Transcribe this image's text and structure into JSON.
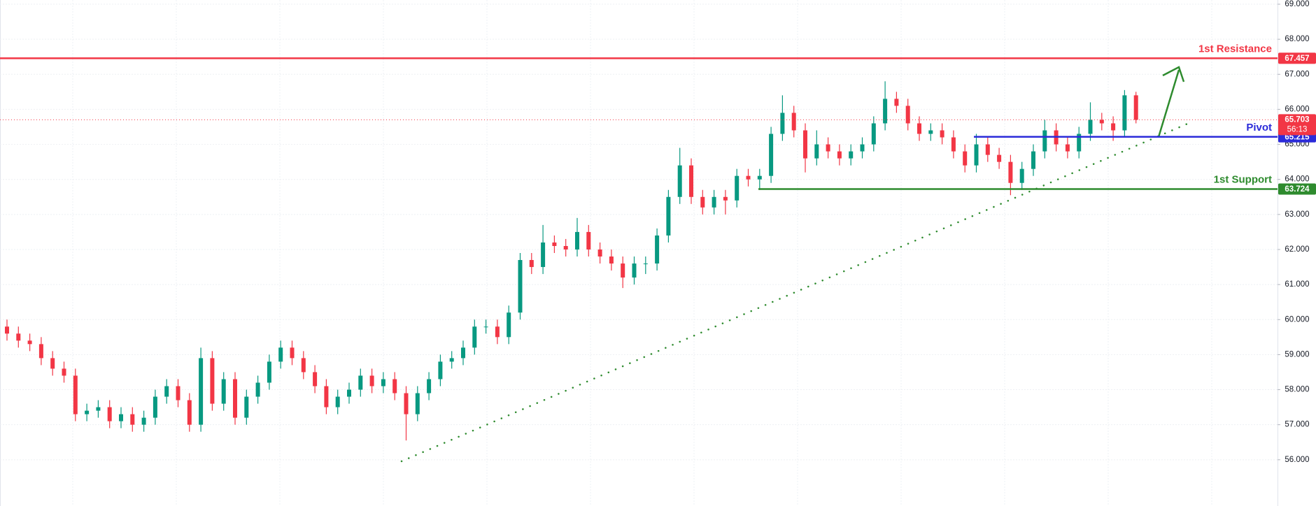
{
  "chart_data": {
    "type": "candlestick",
    "open": [
      59.8,
      59.6,
      59.4,
      59.3,
      58.9,
      58.6,
      58.4,
      57.3,
      57.4,
      57.5,
      57.1,
      57.3,
      57.0,
      57.2,
      57.8,
      58.1,
      57.7,
      57.0,
      58.9,
      57.6,
      58.3,
      57.2,
      57.8,
      58.2,
      58.8,
      59.2,
      58.9,
      58.5,
      58.1,
      57.5,
      57.8,
      58.0,
      58.4,
      58.1,
      58.3,
      57.9,
      57.3,
      57.9,
      58.3,
      58.8,
      58.9,
      59.2,
      59.8,
      59.8,
      59.5,
      60.2,
      61.7,
      61.5,
      62.2,
      62.1,
      62.0,
      62.5,
      62.0,
      61.8,
      61.6,
      61.2,
      61.6,
      61.6,
      62.4,
      63.5,
      64.4,
      63.5,
      63.2,
      63.5,
      63.4,
      64.1,
      64.0,
      64.1,
      65.3,
      65.9,
      65.4,
      64.6,
      65.0,
      64.8,
      64.6,
      64.8,
      65.0,
      65.6,
      66.3,
      66.1,
      65.6,
      65.3,
      65.4,
      65.2,
      64.8,
      64.4,
      65.0,
      64.7,
      64.5,
      63.9,
      64.3,
      64.8,
      65.4,
      65.0,
      64.8,
      65.3,
      65.7,
      65.6,
      65.4,
      66.4
    ],
    "high": [
      60.0,
      59.8,
      59.6,
      59.5,
      59.1,
      58.8,
      58.6,
      57.6,
      57.7,
      57.7,
      57.5,
      57.5,
      57.4,
      58.0,
      58.3,
      58.3,
      57.9,
      59.2,
      59.1,
      58.5,
      58.5,
      58.0,
      58.4,
      59.0,
      59.4,
      59.4,
      59.1,
      58.7,
      58.3,
      58.0,
      58.2,
      58.6,
      58.6,
      58.5,
      58.5,
      58.1,
      58.1,
      58.5,
      59.0,
      59.1,
      59.4,
      60.0,
      60.0,
      60.0,
      60.4,
      61.9,
      61.9,
      62.7,
      62.4,
      62.3,
      62.9,
      62.7,
      62.2,
      62.0,
      61.8,
      61.8,
      61.8,
      62.6,
      63.7,
      64.9,
      64.6,
      63.7,
      63.7,
      63.7,
      64.3,
      64.3,
      64.3,
      65.5,
      66.4,
      66.1,
      65.6,
      65.4,
      65.2,
      65.0,
      65.0,
      65.2,
      65.8,
      66.8,
      66.5,
      66.3,
      65.8,
      65.6,
      65.6,
      65.4,
      65.0,
      65.3,
      65.2,
      64.9,
      64.7,
      64.5,
      65.0,
      65.7,
      65.6,
      65.2,
      65.5,
      66.2,
      65.9,
      65.8,
      66.55,
      66.5
    ],
    "low": [
      59.4,
      59.2,
      59.1,
      58.7,
      58.4,
      58.2,
      57.1,
      57.1,
      57.2,
      56.9,
      56.9,
      56.8,
      56.8,
      57.0,
      57.6,
      57.5,
      56.8,
      56.8,
      57.4,
      57.4,
      57.0,
      57.0,
      57.6,
      58.0,
      58.6,
      58.7,
      58.3,
      57.9,
      57.3,
      57.3,
      57.6,
      57.8,
      57.9,
      57.9,
      57.7,
      56.55,
      57.1,
      57.7,
      58.1,
      58.6,
      58.7,
      59.0,
      59.6,
      59.3,
      59.3,
      60.0,
      61.3,
      61.3,
      61.9,
      61.8,
      61.8,
      61.8,
      61.6,
      61.4,
      60.9,
      61.0,
      61.3,
      61.4,
      62.2,
      63.3,
      63.3,
      63.0,
      63.0,
      63.0,
      63.2,
      63.8,
      63.7,
      63.9,
      65.1,
      65.2,
      64.2,
      64.4,
      64.6,
      64.4,
      64.4,
      64.6,
      64.8,
      65.4,
      65.9,
      65.4,
      65.1,
      65.1,
      65.0,
      64.6,
      64.2,
      64.2,
      64.5,
      64.3,
      63.55,
      63.7,
      64.1,
      64.6,
      64.8,
      64.6,
      64.6,
      65.1,
      65.4,
      65.1,
      65.2,
      65.6
    ],
    "close": [
      59.6,
      59.4,
      59.3,
      58.9,
      58.6,
      58.4,
      57.3,
      57.4,
      57.5,
      57.1,
      57.3,
      57.0,
      57.2,
      57.8,
      58.1,
      57.7,
      57.0,
      58.9,
      57.6,
      58.3,
      57.2,
      57.8,
      58.2,
      58.8,
      59.2,
      58.9,
      58.5,
      58.1,
      57.5,
      57.8,
      58.0,
      58.4,
      58.1,
      58.3,
      57.9,
      57.3,
      57.9,
      58.3,
      58.8,
      58.9,
      59.2,
      59.8,
      59.8,
      59.5,
      60.2,
      61.7,
      61.5,
      62.2,
      62.1,
      62.0,
      62.5,
      62.0,
      61.8,
      61.6,
      61.2,
      61.6,
      61.6,
      62.4,
      63.5,
      64.4,
      63.5,
      63.2,
      63.5,
      63.4,
      64.1,
      64.0,
      64.1,
      65.3,
      65.9,
      65.4,
      64.6,
      65.0,
      64.8,
      64.6,
      64.8,
      65.0,
      65.6,
      66.3,
      66.1,
      65.6,
      65.3,
      65.4,
      65.2,
      64.8,
      64.4,
      65.0,
      64.7,
      64.5,
      63.9,
      64.3,
      64.8,
      65.4,
      65.0,
      64.8,
      65.3,
      65.7,
      65.6,
      65.4,
      66.4,
      65.7
    ],
    "up_color": "#089981",
    "down_color": "#f23645",
    "ylim": [
      54.68,
      69.12
    ],
    "yticks": [
      {
        "value": 56,
        "label": "56.000"
      },
      {
        "value": 57,
        "label": "57.000"
      },
      {
        "value": 58,
        "label": "58.000"
      },
      {
        "value": 59,
        "label": "59.000"
      },
      {
        "value": 60,
        "label": "60.000"
      },
      {
        "value": 61,
        "label": "61.000"
      },
      {
        "value": 62,
        "label": "62.000"
      },
      {
        "value": 63,
        "label": "63.000"
      },
      {
        "value": 64,
        "label": "64.000"
      },
      {
        "value": 65,
        "label": "65.000"
      },
      {
        "value": 66,
        "label": "66.000"
      },
      {
        "value": 67,
        "label": "67.000"
      },
      {
        "value": 68,
        "label": "68.000"
      },
      {
        "value": 69,
        "label": "69.000"
      }
    ],
    "grid": true,
    "levels": [
      {
        "name": "1st Resistance",
        "value": 67.457,
        "color": "#f23645"
      },
      {
        "name": "Pivot",
        "value": 65.215,
        "color": "#2b2bd9"
      },
      {
        "name": "1st Support",
        "value": 63.724,
        "color": "#2e8b2e"
      }
    ],
    "last_price": 65.703,
    "countdown": "56:13",
    "last_price_color": "#f23645"
  }
}
